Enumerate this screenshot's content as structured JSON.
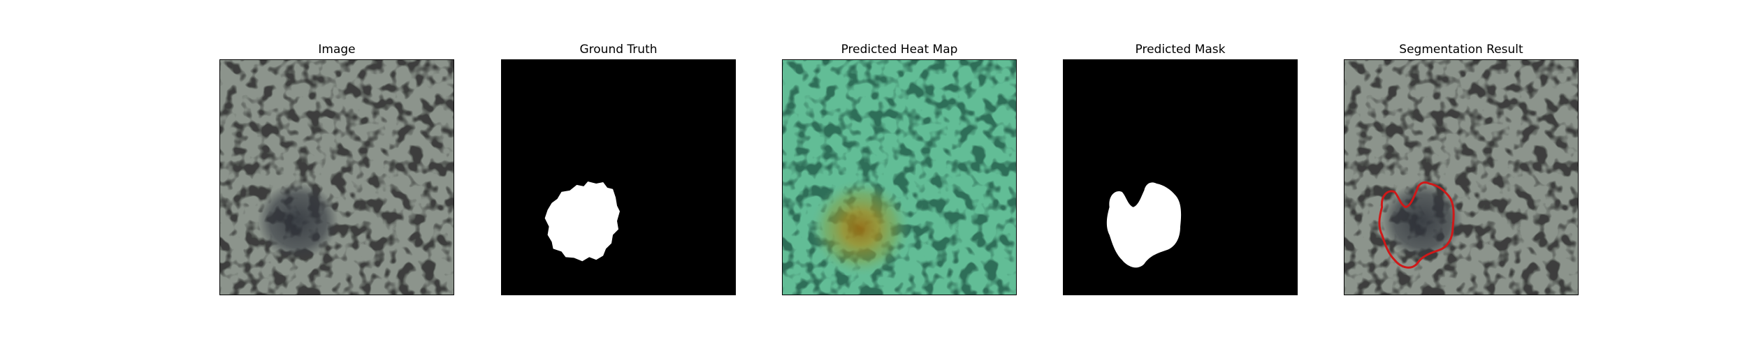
{
  "figure": {
    "background": "#ffffff",
    "panels": [
      {
        "id": "image",
        "title": "Image",
        "kind": "texture"
      },
      {
        "id": "ground-truth",
        "title": "Ground Truth",
        "kind": "mask"
      },
      {
        "id": "heatmap",
        "title": "Predicted Heat Map",
        "kind": "heatmap"
      },
      {
        "id": "pred-mask",
        "title": "Predicted Mask",
        "kind": "mask"
      },
      {
        "id": "segmentation",
        "title": "Segmentation Result",
        "kind": "overlay"
      }
    ]
  },
  "colors": {
    "texture_base": "#8c948c",
    "texture_spot": "#3c3e3c",
    "defect": "#34383f",
    "mask_bg": "#000000",
    "mask_fg": "#ffffff",
    "heat_cool": "#5fbf98",
    "heat_warm": "#a07a1a",
    "contour": "#d01818"
  }
}
